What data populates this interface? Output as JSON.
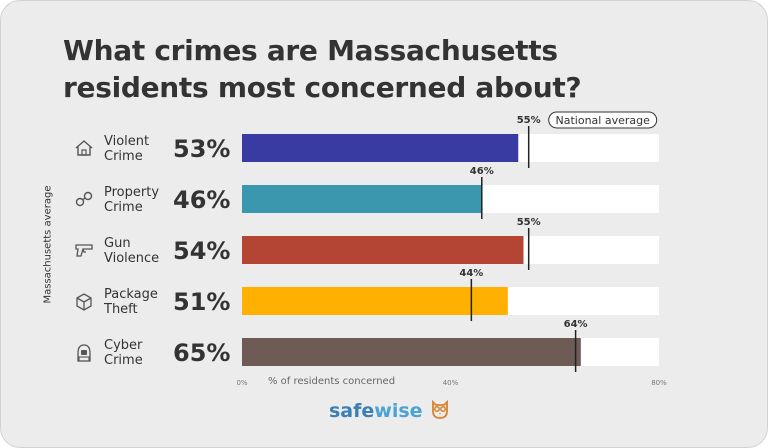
{
  "title": "What crimes are Massachusetts residents most concerned about?",
  "side_label": "Massachusetts average",
  "legend_label": "National average",
  "brand": {
    "part1": "safe",
    "part2": "wise"
  },
  "rows": [
    {
      "label_line1": "Violent",
      "label_line2": "Crime",
      "value_text": "53%",
      "icon": "house-icon",
      "color": "#3a3aa3"
    },
    {
      "label_line1": "Property",
      "label_line2": "Crime",
      "value_text": "46%",
      "icon": "handcuffs-icon",
      "color": "#3a97ae"
    },
    {
      "label_line1": "Gun",
      "label_line2": "Violence",
      "value_text": "54%",
      "icon": "gun-icon",
      "color": "#b44433"
    },
    {
      "label_line1": "Package",
      "label_line2": "Theft",
      "value_text": "51%",
      "icon": "package-icon",
      "color": "#ffb000"
    },
    {
      "label_line1": "Cyber",
      "label_line2": "Crime",
      "value_text": "65%",
      "icon": "hacker-icon",
      "color": "#6e5b55"
    }
  ],
  "chart_data": {
    "type": "bar",
    "orientation": "horizontal",
    "categories": [
      "Violent Crime",
      "Property Crime",
      "Gun Violence",
      "Package Theft",
      "Cyber Crime"
    ],
    "series": [
      {
        "name": "Massachusetts average",
        "values": [
          53,
          46,
          54,
          51,
          65
        ]
      },
      {
        "name": "National average",
        "values": [
          55,
          46,
          55,
          44,
          64
        ]
      }
    ],
    "national_labels": [
      "55%",
      "46%",
      "55%",
      "44%",
      "64%"
    ],
    "xlabel": "% of residents concerned",
    "xlim": [
      0,
      80
    ],
    "xticks": [
      "0%",
      "40%",
      "80%"
    ],
    "xtick_values": [
      0,
      40,
      80
    ]
  }
}
